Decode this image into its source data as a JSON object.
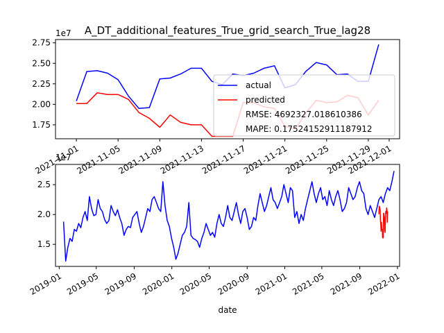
{
  "chart_data": [
    {
      "type": "line",
      "title": "A_DT_additional_features_True_grid_search_True_lag28",
      "xlabel": "",
      "ylabel": "",
      "scale_label": "1e7",
      "xlim": [
        "2021-10-30",
        "2021-12-02"
      ],
      "ylim": [
        15800000.0,
        27900000.0
      ],
      "yticks": [
        17500000.0,
        20000000.0,
        22500000.0,
        25000000.0,
        27500000.0
      ],
      "ytick_labels": [
        "1.75",
        "2.00",
        "2.25",
        "2.50",
        "2.75"
      ],
      "xticks": [
        "2021-11-01",
        "2021-11-05",
        "2021-11-09",
        "2021-11-13",
        "2021-11-17",
        "2021-11-21",
        "2021-11-25",
        "2021-11-29",
        "2021-12-01"
      ],
      "xtick_labels": [
        "2021-11-01",
        "2021-11-05",
        "2021-11-09",
        "2021-11-13",
        "2021-11-17",
        "2021-11-21",
        "2021-11-25",
        "2021-11-29",
        "2021-12-01"
      ],
      "legend": {
        "placement": "lower right",
        "entries": [
          {
            "label": "actual",
            "color": "#0000ff"
          },
          {
            "label": "predicted",
            "color": "#ff0000"
          }
        ],
        "text_lines": [
          "RMSE: 4692327.018610386",
          "MAPE: 0.17524152911187912"
        ]
      },
      "series": [
        {
          "name": "actual",
          "color": "#0000ff",
          "x": [
            "2021-11-01",
            "2021-11-02",
            "2021-11-03",
            "2021-11-04",
            "2021-11-05",
            "2021-11-06",
            "2021-11-07",
            "2021-11-08",
            "2021-11-09",
            "2021-11-10",
            "2021-11-11",
            "2021-11-12",
            "2021-11-13",
            "2021-11-14",
            "2021-11-15",
            "2021-11-16",
            "2021-11-17",
            "2021-11-18",
            "2021-11-19",
            "2021-11-20",
            "2021-11-21",
            "2021-11-22",
            "2021-11-23",
            "2021-11-24",
            "2021-11-25",
            "2021-11-26",
            "2021-11-27",
            "2021-11-28",
            "2021-11-29",
            "2021-11-30"
          ],
          "values": [
            20400000.0,
            24000000.0,
            24100000.0,
            23800000.0,
            23000000.0,
            21000000.0,
            19500000.0,
            19600000.0,
            23100000.0,
            23200000.0,
            23700000.0,
            24400000.0,
            24400000.0,
            22800000.0,
            22400000.0,
            23700000.0,
            23500000.0,
            23800000.0,
            24400000.0,
            24700000.0,
            22000000.0,
            22400000.0,
            24000000.0,
            25100000.0,
            24800000.0,
            23600000.0,
            23700000.0,
            22800000.0,
            22800000.0,
            27300000.0
          ]
        },
        {
          "name": "predicted",
          "color": "#ff0000",
          "x": [
            "2021-11-01",
            "2021-11-02",
            "2021-11-03",
            "2021-11-04",
            "2021-11-05",
            "2021-11-06",
            "2021-11-07",
            "2021-11-08",
            "2021-11-09",
            "2021-11-10",
            "2021-11-11",
            "2021-11-12",
            "2021-11-13",
            "2021-11-14",
            "2021-11-15",
            "2021-11-16",
            "2021-11-17",
            "2021-11-18",
            "2021-11-19",
            "2021-11-20",
            "2021-11-21",
            "2021-11-22",
            "2021-11-23",
            "2021-11-24",
            "2021-11-25",
            "2021-11-26",
            "2021-11-27",
            "2021-11-28",
            "2021-11-29",
            "2021-11-30"
          ],
          "values": [
            20100000.0,
            20100000.0,
            21400000.0,
            21200000.0,
            21200000.0,
            20600000.0,
            19000000.0,
            18300000.0,
            17200000.0,
            18700000.0,
            17800000.0,
            17500000.0,
            17500000.0,
            16100000.0,
            16100000.0,
            16100000.0,
            20200000.0,
            20200000.0,
            19700000.0,
            19500000.0,
            17300000.0,
            17000000.0,
            18900000.0,
            20500000.0,
            20200000.0,
            20300000.0,
            21100000.0,
            20800000.0,
            18700000.0,
            20500000.0
          ]
        }
      ]
    },
    {
      "type": "line",
      "title": "",
      "xlabel": "date",
      "ylabel": "",
      "scale_label": "1e7",
      "xlim": [
        "2018-12-20",
        "2022-01-08"
      ],
      "ylim": [
        11300000.0,
        28400000.0
      ],
      "yticks": [
        15000000.0,
        20000000.0,
        25000000.0
      ],
      "ytick_labels": [
        "1.5",
        "2.0",
        "2.5"
      ],
      "xticks": [
        "2019-01-01",
        "2019-05-01",
        "2019-09-01",
        "2020-01-01",
        "2020-05-01",
        "2020-09-01",
        "2021-01-01",
        "2021-05-01",
        "2021-09-01",
        "2022-01-01"
      ],
      "xtick_labels": [
        "2019-01",
        "2019-05",
        "2019-09",
        "2020-01",
        "2020-05",
        "2020-09",
        "2021-01",
        "2021-05",
        "2021-09",
        "2022-01"
      ],
      "series": [
        {
          "name": "actual",
          "color": "#0000ff",
          "x_start": "2019-01-15",
          "x_step_days": 7,
          "values": [
            18800000.0,
            12200000.0,
            14500000.0,
            16000000.0,
            15500000.0,
            17500000.0,
            17200000.0,
            18500000.0,
            17800000.0,
            19500000.0,
            20500000.0,
            19000000.0,
            23000000.0,
            21000000.0,
            19800000.0,
            20000000.0,
            22500000.0,
            21000000.0,
            20500000.0,
            19200000.0,
            18500000.0,
            19000000.0,
            21500000.0,
            20500000.0,
            19800000.0,
            20800000.0,
            19500000.0,
            18500000.0,
            16500000.0,
            17500000.0,
            18000000.0,
            17800000.0,
            19500000.0,
            20000000.0,
            20500000.0,
            18500000.0,
            17000000.0,
            18000000.0,
            19500000.0,
            21000000.0,
            20500000.0,
            22500000.0,
            23000000.0,
            22000000.0,
            21000000.0,
            20500000.0,
            25500000.0,
            21500000.0,
            19000000.0,
            18000000.0,
            16000000.0,
            14500000.0,
            12500000.0,
            13500000.0,
            15000000.0,
            16500000.0,
            17000000.0,
            18000000.0,
            22000000.0,
            16500000.0,
            16000000.0,
            15800000.0,
            15500000.0,
            14500000.0,
            16000000.0,
            17000000.0,
            18500000.0,
            17500000.0,
            16500000.0,
            17000000.0,
            16200000.0,
            18500000.0,
            20000000.0,
            18500000.0,
            18000000.0,
            19500000.0,
            21500000.0,
            19500000.0,
            19000000.0,
            20500000.0,
            22000000.0,
            20000000.0,
            18500000.0,
            20500000.0,
            21000000.0,
            19500000.0,
            17500000.0,
            18000000.0,
            19500000.0,
            19000000.0,
            21500000.0,
            23500000.0,
            22000000.0,
            20500000.0,
            21500000.0,
            23000000.0,
            24500000.0,
            22500000.0,
            22000000.0,
            21000000.0,
            22000000.0,
            23000000.0,
            25000000.0,
            23500000.0,
            22000000.0,
            24500000.0,
            24000000.0,
            19500000.0,
            20500000.0,
            18500000.0,
            20000000.0,
            19000000.0,
            21000000.0,
            22500000.0,
            24000000.0,
            25500000.0,
            23500000.0,
            22000000.0,
            23500000.0,
            24500000.0,
            22500000.0,
            23000000.0,
            21500000.0,
            24000000.0,
            22500000.0,
            21500000.0,
            23000000.0,
            24000000.0,
            22500000.0,
            20500000.0,
            21000000.0,
            22000000.0,
            24500000.0,
            23500000.0,
            22500000.0,
            23000000.0,
            24500000.0,
            25500000.0,
            24000000.0,
            23500000.0,
            21000000.0,
            20000000.0,
            21500000.0,
            20500000.0,
            19500000.0,
            21000000.0,
            22500000.0,
            23000000.0,
            22000000.0,
            23500000.0,
            24500000.0,
            24000000.0,
            25500000.0,
            27300000.0
          ]
        },
        {
          "name": "predicted",
          "color": "#ff0000",
          "x_start": "2021-11-01",
          "x_step_days": 1,
          "values": [
            20100000.0,
            20100000.0,
            21400000.0,
            21200000.0,
            21200000.0,
            20600000.0,
            19000000.0,
            18300000.0,
            17200000.0,
            18700000.0,
            17800000.0,
            17500000.0,
            17500000.0,
            16100000.0,
            16100000.0,
            16100000.0,
            20200000.0,
            20200000.0,
            19700000.0,
            19500000.0,
            17300000.0,
            17000000.0,
            18900000.0,
            20500000.0,
            20200000.0,
            20300000.0,
            21100000.0,
            20800000.0,
            18700000.0,
            20500000.0
          ]
        }
      ]
    }
  ]
}
